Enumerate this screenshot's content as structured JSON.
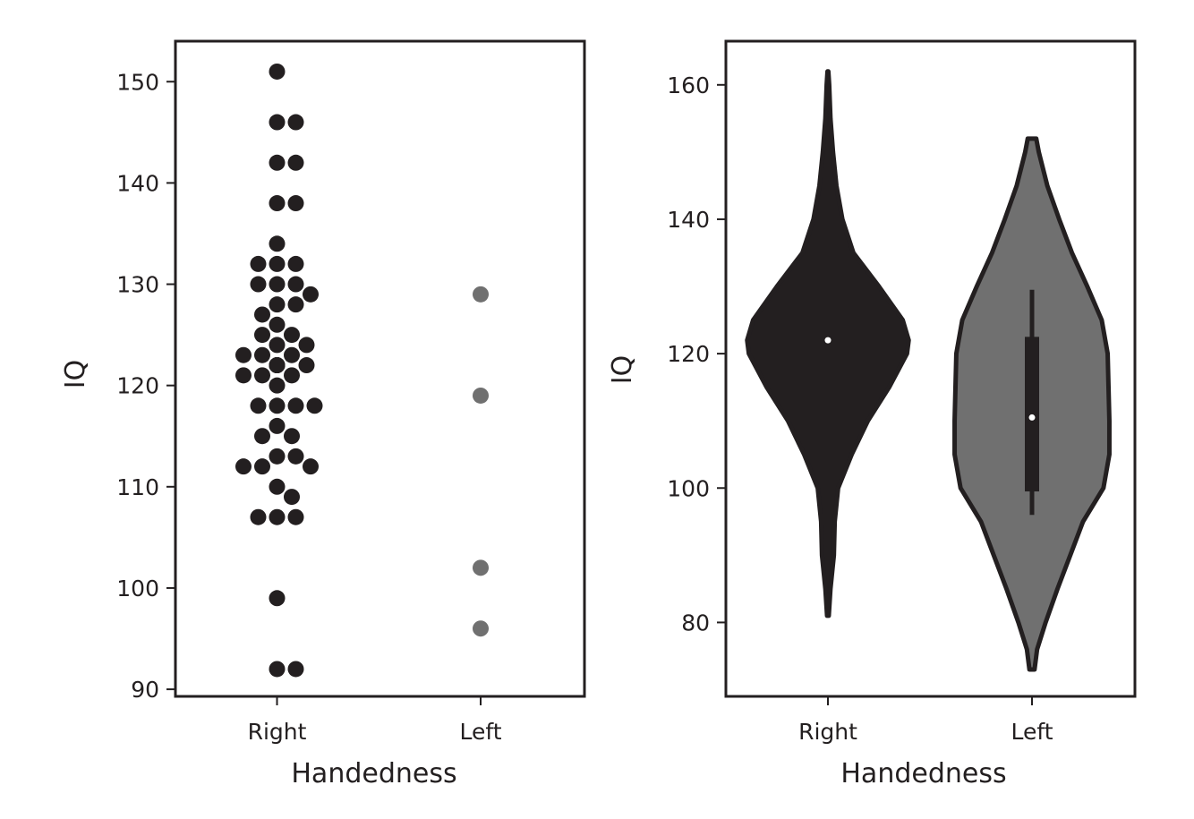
{
  "colors": {
    "right": "#231f20",
    "left": "#707070",
    "axis": "#231f20",
    "median_dot": "#ffffff"
  },
  "chart_data": [
    {
      "type": "scatter",
      "subtype": "swarm",
      "xlabel": "Handedness",
      "ylabel": "IQ",
      "categories": [
        "Right",
        "Left"
      ],
      "ylim": [
        89.3,
        154
      ],
      "yticks": [
        90,
        100,
        110,
        120,
        130,
        140,
        150
      ],
      "grid": false,
      "series": [
        {
          "category": "Right",
          "values": [
            151,
            146,
            146,
            142,
            142,
            138,
            138,
            134,
            132,
            132,
            132,
            130,
            130,
            130,
            129,
            128,
            128,
            127,
            126,
            125,
            125,
            124,
            124,
            123,
            123,
            123,
            122,
            122,
            122,
            122,
            122,
            121,
            121,
            121,
            120,
            118,
            118,
            118,
            118,
            116,
            115,
            115,
            113,
            113,
            112,
            112,
            112,
            110,
            109,
            107,
            107,
            107,
            99,
            92,
            92
          ]
        },
        {
          "category": "Left",
          "values": [
            129,
            119,
            102,
            96
          ]
        }
      ]
    },
    {
      "type": "violin",
      "xlabel": "Handedness",
      "ylabel": "IQ",
      "categories": [
        "Right",
        "Left"
      ],
      "ylim": [
        69,
        166.5
      ],
      "yticks": [
        80,
        100,
        120,
        140,
        160
      ],
      "grid": false,
      "series": [
        {
          "category": "Right",
          "range": [
            81,
            162
          ],
          "q1": 122,
          "median": 122,
          "q3": 122,
          "whisker_low": 122,
          "whisker_high": 122,
          "density_profile": [
            [
              81,
              0.01
            ],
            [
              85,
              0.03
            ],
            [
              90,
              0.07
            ],
            [
              95,
              0.08
            ],
            [
              100,
              0.12
            ],
            [
              105,
              0.28
            ],
            [
              110,
              0.47
            ],
            [
              115,
              0.72
            ],
            [
              120,
              0.93
            ],
            [
              122,
              0.95
            ],
            [
              125,
              0.88
            ],
            [
              130,
              0.6
            ],
            [
              135,
              0.3
            ],
            [
              140,
              0.17
            ],
            [
              145,
              0.1
            ],
            [
              150,
              0.06
            ],
            [
              155,
              0.03
            ],
            [
              160,
              0.015
            ],
            [
              162,
              0.005
            ]
          ]
        },
        {
          "category": "Left",
          "range": [
            73,
            152
          ],
          "q1": 99.5,
          "median": 110.5,
          "q3": 122.5,
          "whisker_low": 96,
          "whisker_high": 129.5,
          "density_profile": [
            [
              73,
              0.03
            ],
            [
              76,
              0.06
            ],
            [
              80,
              0.16
            ],
            [
              85,
              0.3
            ],
            [
              90,
              0.45
            ],
            [
              95,
              0.6
            ],
            [
              100,
              0.84
            ],
            [
              105,
              0.91
            ],
            [
              110,
              0.91
            ],
            [
              115,
              0.9
            ],
            [
              120,
              0.89
            ],
            [
              125,
              0.82
            ],
            [
              130,
              0.65
            ],
            [
              135,
              0.47
            ],
            [
              140,
              0.32
            ],
            [
              145,
              0.18
            ],
            [
              150,
              0.08
            ],
            [
              152,
              0.05
            ]
          ]
        }
      ]
    }
  ]
}
